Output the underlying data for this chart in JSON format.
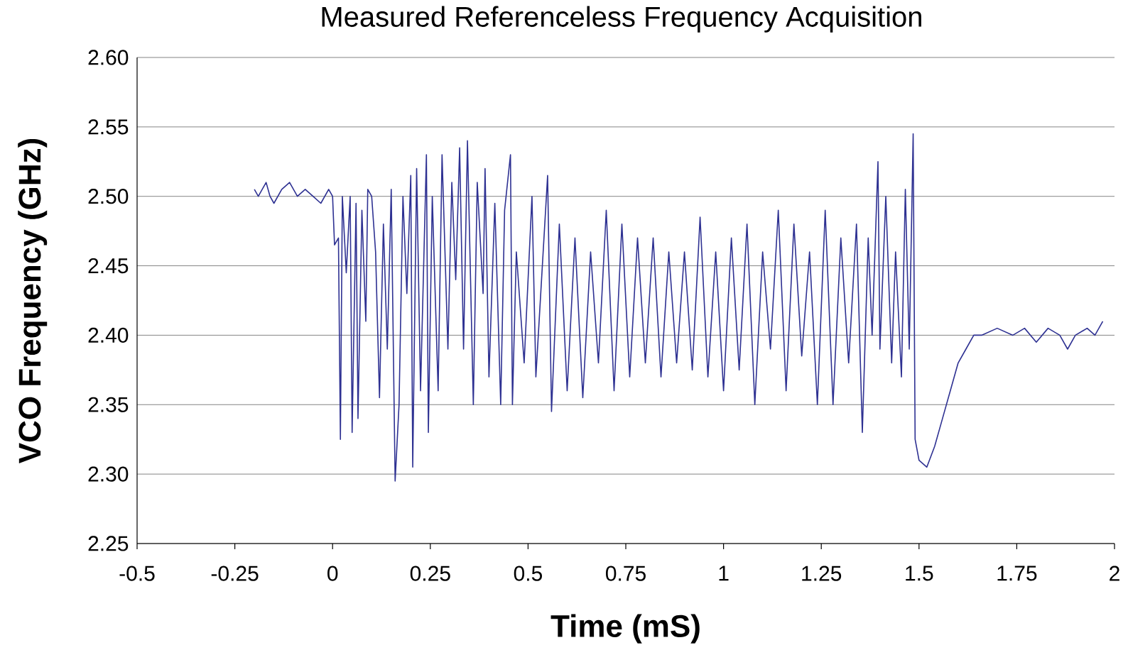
{
  "chart_data": {
    "type": "line",
    "title": "Measured Referenceless Frequency Acquisition",
    "xlabel": "Time (mS)",
    "ylabel": "VCO Frequency (GHz)",
    "xlim": [
      -0.5,
      2
    ],
    "ylim": [
      2.25,
      2.6
    ],
    "xticks": [
      -0.5,
      -0.25,
      0,
      0.25,
      0.5,
      0.75,
      1,
      1.25,
      1.5,
      1.75,
      2
    ],
    "yticks": [
      {
        "value": 2.25,
        "label": "2.25"
      },
      {
        "value": 2.3,
        "label": "2.30"
      },
      {
        "value": 2.35,
        "label": "2.35"
      },
      {
        "value": 2.4,
        "label": "2.40"
      },
      {
        "value": 2.45,
        "label": "2.45"
      },
      {
        "value": 2.5,
        "label": "2.50"
      },
      {
        "value": 2.55,
        "label": "2.55"
      },
      {
        "value": 2.6,
        "label": "2.60"
      }
    ],
    "grid": "y",
    "marker": "none",
    "line_style": "solid",
    "series": [
      {
        "color": "#2e3192",
        "x": [
          -0.2,
          -0.19,
          -0.18,
          -0.17,
          -0.16,
          -0.15,
          -0.13,
          -0.11,
          -0.09,
          -0.07,
          -0.05,
          -0.03,
          -0.01,
          0.0,
          0.005,
          0.015,
          0.02,
          0.025,
          0.035,
          0.045,
          0.05,
          0.06,
          0.065,
          0.075,
          0.085,
          0.09,
          0.1,
          0.11,
          0.12,
          0.13,
          0.14,
          0.15,
          0.16,
          0.17,
          0.18,
          0.19,
          0.2,
          0.205,
          0.215,
          0.225,
          0.24,
          0.245,
          0.255,
          0.27,
          0.28,
          0.295,
          0.305,
          0.315,
          0.325,
          0.335,
          0.345,
          0.36,
          0.37,
          0.385,
          0.39,
          0.4,
          0.415,
          0.43,
          0.44,
          0.455,
          0.46,
          0.47,
          0.49,
          0.51,
          0.52,
          0.55,
          0.56,
          0.58,
          0.6,
          0.62,
          0.64,
          0.66,
          0.68,
          0.7,
          0.72,
          0.74,
          0.76,
          0.78,
          0.8,
          0.82,
          0.84,
          0.86,
          0.88,
          0.9,
          0.92,
          0.94,
          0.96,
          0.98,
          1.0,
          1.02,
          1.04,
          1.06,
          1.08,
          1.1,
          1.12,
          1.14,
          1.16,
          1.18,
          1.2,
          1.22,
          1.24,
          1.26,
          1.28,
          1.3,
          1.32,
          1.34,
          1.355,
          1.37,
          1.38,
          1.395,
          1.4,
          1.415,
          1.43,
          1.44,
          1.455,
          1.465,
          1.475,
          1.485,
          1.49,
          1.5,
          1.52,
          1.54,
          1.56,
          1.58,
          1.6,
          1.62,
          1.64,
          1.66,
          1.7,
          1.74,
          1.77,
          1.8,
          1.83,
          1.86,
          1.88,
          1.9,
          1.93,
          1.95,
          1.97
        ],
        "values": [
          2.505,
          2.5,
          2.505,
          2.51,
          2.5,
          2.495,
          2.505,
          2.51,
          2.5,
          2.505,
          2.5,
          2.495,
          2.505,
          2.5,
          2.465,
          2.47,
          2.325,
          2.5,
          2.445,
          2.5,
          2.33,
          2.495,
          2.34,
          2.49,
          2.41,
          2.505,
          2.5,
          2.46,
          2.355,
          2.48,
          2.39,
          2.505,
          2.295,
          2.35,
          2.5,
          2.43,
          2.515,
          2.305,
          2.52,
          2.36,
          2.53,
          2.33,
          2.5,
          2.36,
          2.53,
          2.39,
          2.51,
          2.44,
          2.535,
          2.39,
          2.54,
          2.35,
          2.51,
          2.43,
          2.52,
          2.37,
          2.495,
          2.35,
          2.49,
          2.53,
          2.35,
          2.46,
          2.38,
          2.5,
          2.37,
          2.515,
          2.345,
          2.48,
          2.36,
          2.47,
          2.355,
          2.46,
          2.38,
          2.49,
          2.36,
          2.48,
          2.37,
          2.47,
          2.38,
          2.47,
          2.37,
          2.46,
          2.38,
          2.46,
          2.375,
          2.485,
          2.37,
          2.46,
          2.36,
          2.47,
          2.375,
          2.48,
          2.35,
          2.46,
          2.39,
          2.49,
          2.36,
          2.48,
          2.385,
          2.46,
          2.35,
          2.49,
          2.35,
          2.47,
          2.38,
          2.48,
          2.33,
          2.47,
          2.4,
          2.525,
          2.39,
          2.5,
          2.38,
          2.46,
          2.37,
          2.505,
          2.39,
          2.545,
          2.325,
          2.31,
          2.305,
          2.32,
          2.34,
          2.36,
          2.38,
          2.39,
          2.4,
          2.4,
          2.405,
          2.4,
          2.405,
          2.395,
          2.405,
          2.4,
          2.39,
          2.4,
          2.405,
          2.4,
          2.41
        ]
      }
    ]
  }
}
